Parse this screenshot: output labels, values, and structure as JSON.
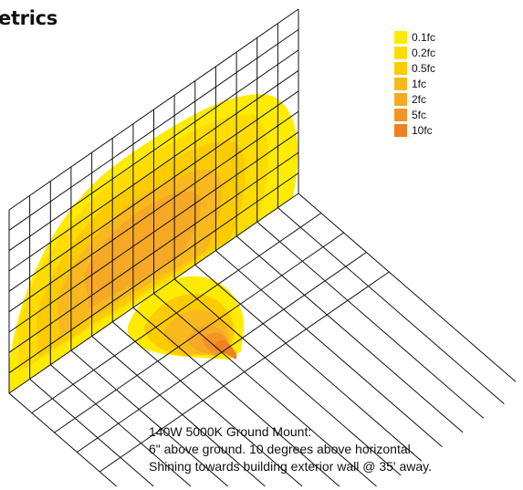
{
  "header": {
    "title": "etrics"
  },
  "legend": {
    "items": [
      {
        "label": "0.1fc",
        "color": "#FFEB00"
      },
      {
        "label": "0.2fc",
        "color": "#FEDC00"
      },
      {
        "label": "0.5fc",
        "color": "#FCCB00"
      },
      {
        "label": "1fc",
        "color": "#F9B91E"
      },
      {
        "label": "2fc",
        "color": "#F7A824"
      },
      {
        "label": "5fc",
        "color": "#F39426"
      },
      {
        "label": "10fc",
        "color": "#EF8024"
      }
    ]
  },
  "caption": {
    "line1": "140W 5000K Ground Mount:",
    "line2": "6\" above ground. 10 degrees above horizontal.",
    "line3": "Shining towards building exterior wall @ 35' away."
  },
  "colors": {
    "grid": "#111111",
    "background": "#ffffff"
  }
}
